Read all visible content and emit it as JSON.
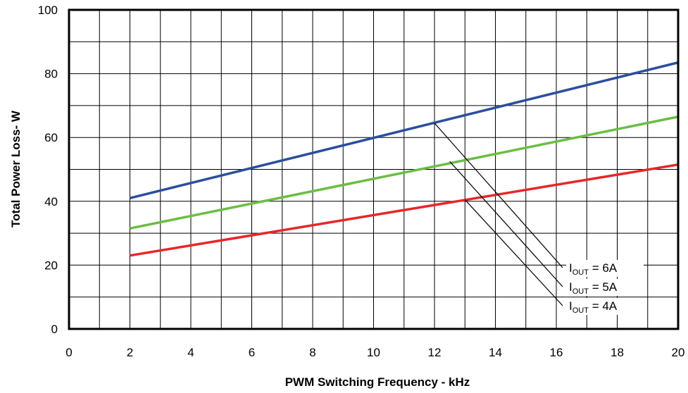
{
  "chart_data": {
    "type": "line",
    "xlabel": "PWM Switching Frequency - kHz",
    "ylabel": "Total Power Loss- W",
    "xlim": [
      0,
      20
    ],
    "ylim": [
      0,
      100
    ],
    "x_ticks": [
      0,
      2,
      4,
      6,
      8,
      10,
      12,
      14,
      16,
      18,
      20
    ],
    "y_ticks": [
      0,
      20,
      40,
      60,
      80,
      100
    ],
    "x_minor_step": 1,
    "y_minor_step": 10,
    "grid": true,
    "legend_position": "bottom-right",
    "series": [
      {
        "name_main": "I",
        "name_sub": "OUT",
        "name_tail": " = 6A",
        "color": "#2b4f9e",
        "x": [
          2,
          20
        ],
        "y": [
          41,
          83.5
        ],
        "label_anchor": [
          12,
          64.5
        ]
      },
      {
        "name_main": "I",
        "name_sub": "OUT",
        "name_tail": " = 5A",
        "color": "#6cbd45",
        "x": [
          2,
          20
        ],
        "y": [
          31.5,
          66.5
        ],
        "label_anchor": [
          12.5,
          52.5
        ]
      },
      {
        "name_main": "I",
        "name_sub": "OUT",
        "name_tail": " = 4A",
        "color": "#e8262a",
        "x": [
          2,
          20
        ],
        "y": [
          23,
          51.5
        ],
        "label_anchor": [
          13,
          40.5
        ]
      }
    ]
  }
}
